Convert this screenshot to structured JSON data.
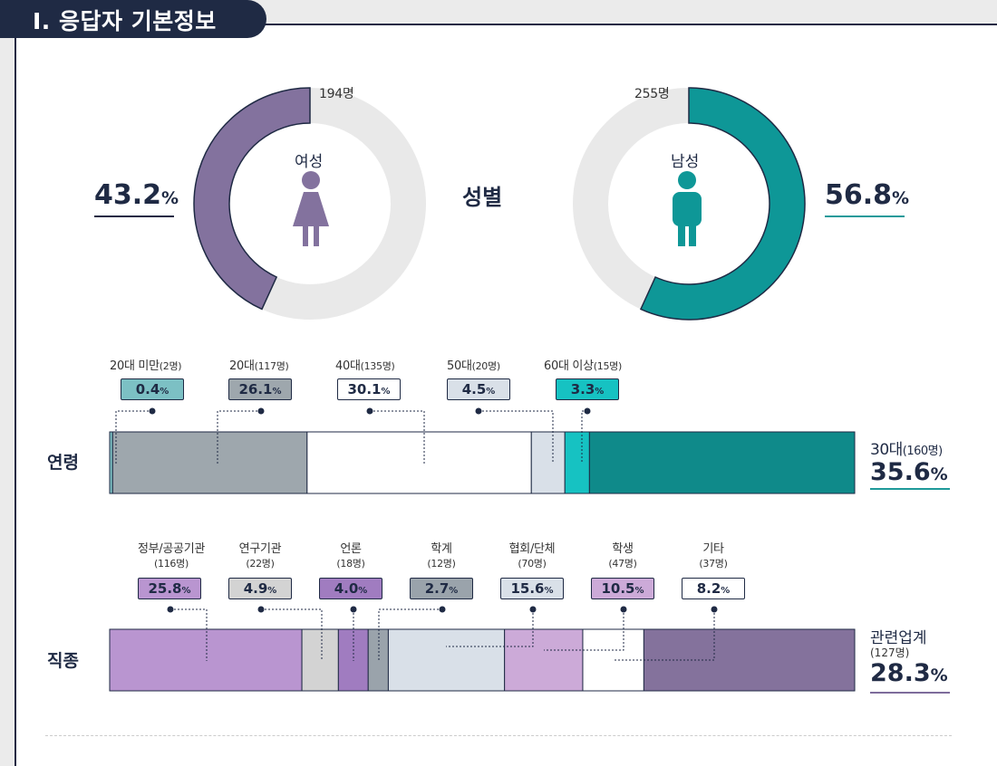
{
  "header": {
    "title": "Ⅰ. 응답자 기본정보"
  },
  "gender": {
    "section_label": "성별",
    "female": {
      "label": "여성",
      "percent": "43.2",
      "count": "194명",
      "share": 0.432,
      "color": "#83729e"
    },
    "male": {
      "label": "남성",
      "percent": "56.8",
      "count": "255명",
      "share": 0.568,
      "color": "#0e9797"
    },
    "track_color": "#e9e9e9",
    "percent_unit": "%"
  },
  "age": {
    "section_label": "연령",
    "largest": {
      "label": "30대",
      "count": "(160명)",
      "percent": "35.6"
    },
    "groups": [
      {
        "label": "20대 미만",
        "count": "(2명)",
        "percent": "0.4",
        "color": "#7cc0c4"
      },
      {
        "label": "20대",
        "count": "(117명)",
        "percent": "26.1",
        "color": "#9ea7ad"
      },
      {
        "label": "40대",
        "count": "(135명)",
        "percent": "30.1",
        "color": "#ffffff"
      },
      {
        "label": "50대",
        "count": "(20명)",
        "percent": "4.5",
        "color": "#d9e0e8"
      },
      {
        "label": "60대 이상",
        "count": "(15명)",
        "percent": "3.3",
        "color": "#16c2c2"
      }
    ]
  },
  "job": {
    "section_label": "직종",
    "largest": {
      "label": "관련업계",
      "count": "(127명)",
      "percent": "28.3"
    },
    "groups": [
      {
        "label": "정부/공공기관",
        "count": "(116명)",
        "percent": "25.8",
        "color": "#b995d0"
      },
      {
        "label": "연구기관",
        "count": "(22명)",
        "percent": "4.9",
        "color": "#d3d3d3"
      },
      {
        "label": "언론",
        "count": "(18명)",
        "percent": "4.0",
        "color": "#a07cc0"
      },
      {
        "label": "학계",
        "count": "(12명)",
        "percent": "2.7",
        "color": "#9aa3ab"
      },
      {
        "label": "협회/단체",
        "count": "(70명)",
        "percent": "15.6",
        "color": "#d9e0e8"
      },
      {
        "label": "학생",
        "count": "(47명)",
        "percent": "10.5",
        "color": "#ccaad8"
      },
      {
        "label": "기타",
        "count": "(37명)",
        "percent": "8.2",
        "color": "#ffffff"
      }
    ]
  },
  "chart_data": [
    {
      "type": "pie",
      "title": "성별",
      "categories": [
        "여성",
        "남성"
      ],
      "values": [
        43.2,
        56.8
      ],
      "counts": [
        194,
        255
      ],
      "colors": [
        "#83729e",
        "#0e9797"
      ]
    },
    {
      "type": "bar",
      "title": "연령",
      "categories": [
        "20대 미만",
        "20대",
        "40대",
        "50대",
        "60대 이상",
        "30대"
      ],
      "values": [
        0.4,
        26.1,
        30.1,
        4.5,
        3.3,
        35.6
      ],
      "counts": [
        2,
        117,
        135,
        20,
        15,
        160
      ],
      "colors": [
        "#7cc0c4",
        "#9ea7ad",
        "#ffffff",
        "#d9e0e8",
        "#16c2c2",
        "#0f8a8a"
      ]
    },
    {
      "type": "bar",
      "title": "직종",
      "categories": [
        "정부/공공기관",
        "연구기관",
        "언론",
        "학계",
        "협회/단체",
        "학생",
        "기타",
        "관련업계"
      ],
      "values": [
        25.8,
        4.9,
        4.0,
        2.7,
        15.6,
        10.5,
        8.2,
        28.3
      ],
      "counts": [
        116,
        22,
        18,
        12,
        70,
        47,
        37,
        127
      ],
      "colors": [
        "#b995d0",
        "#d3d3d3",
        "#a07cc0",
        "#9aa3ab",
        "#d9e0e8",
        "#ccaad8",
        "#ffffff",
        "#84729c"
      ]
    }
  ]
}
